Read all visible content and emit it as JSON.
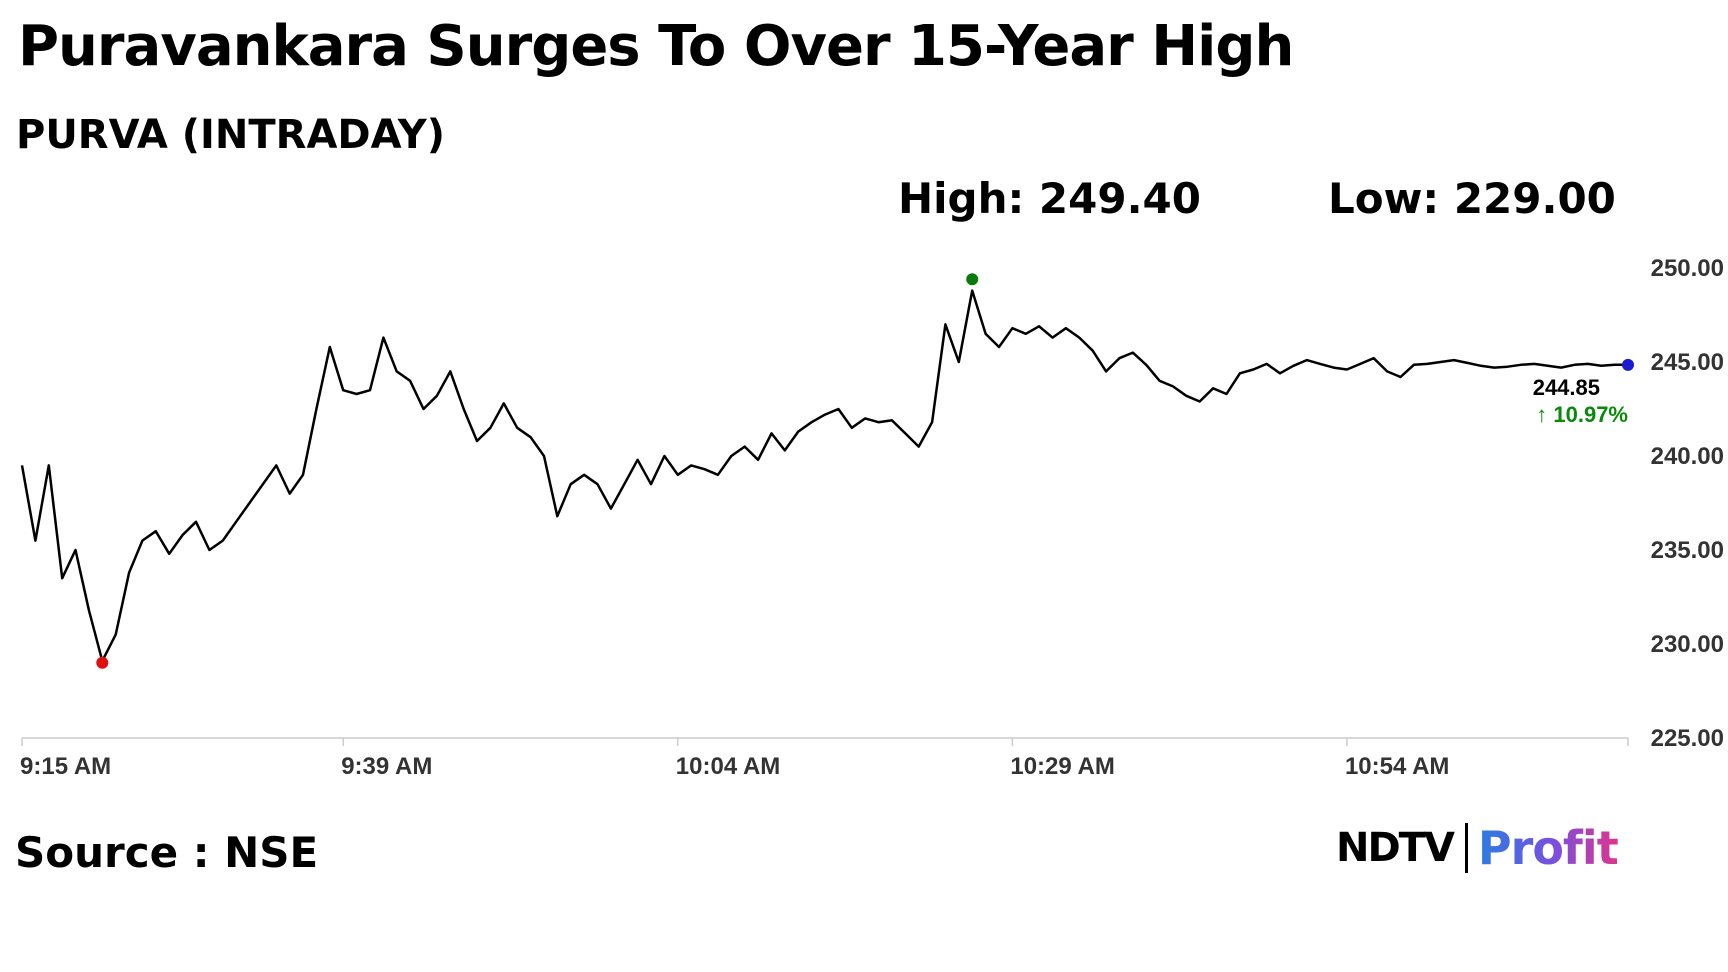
{
  "title": "Puravankara Surges To Over 15-Year High",
  "subtitle": "PURVA (INTRADAY)",
  "stats": {
    "high": "High: 249.40",
    "low": "Low: 229.00"
  },
  "source": "Source : NSE",
  "logo": {
    "ndtv": "NDTV",
    "profit": "Profit"
  },
  "colors": {
    "line": "#000000",
    "high_marker": "#0a7a0a",
    "low_marker": "#e01010",
    "last_marker": "#1a1ad0",
    "change": "#0a8a0a",
    "axis": "#cccccc"
  },
  "chart_data": {
    "type": "line",
    "title": "Puravankara Surges To Over 15-Year High",
    "subtitle": "PURVA (INTRADAY)",
    "xlabel": "",
    "ylabel": "",
    "x_ticks": [
      "9:15 AM",
      "9:39 AM",
      "10:04 AM",
      "10:29 AM",
      "10:54 AM"
    ],
    "y_ticks": [
      "250.00",
      "245.00",
      "240.00",
      "235.00",
      "230.00",
      "225.00"
    ],
    "ylim": [
      225,
      250
    ],
    "grid": false,
    "last_value_label": "244.85",
    "change_label": "↑ 10.97%",
    "series": [
      {
        "x": [
          0,
          1,
          2,
          3,
          4,
          5,
          6,
          7,
          8,
          9,
          10,
          11,
          12,
          13,
          14,
          15,
          16,
          17,
          18,
          19,
          20,
          21,
          22,
          23,
          24,
          25,
          26,
          27,
          28,
          29,
          30,
          31,
          32,
          33,
          34,
          35,
          36,
          37,
          38,
          39,
          40,
          41,
          42,
          43,
          44,
          45,
          46,
          47,
          48,
          49,
          50,
          51,
          52,
          53,
          54,
          55,
          56,
          57,
          58,
          59,
          60,
          61,
          62,
          63,
          64,
          65,
          66,
          67,
          68,
          69,
          70,
          71,
          72,
          73,
          74,
          75,
          76,
          77,
          78,
          79,
          80,
          81,
          82,
          83,
          84,
          85,
          86,
          87,
          88,
          89,
          90,
          91,
          92,
          93,
          94,
          95,
          96,
          97,
          98,
          99,
          100,
          101,
          102,
          103,
          104,
          105,
          106,
          107,
          108,
          109,
          110,
          111,
          112,
          113,
          114,
          115,
          116,
          117,
          118,
          119,
          120
        ],
        "y": [
          239.5,
          235.5,
          239.5,
          233.5,
          235.0,
          231.8,
          229.1,
          230.5,
          233.8,
          235.5,
          236.0,
          234.8,
          235.8,
          236.5,
          235.0,
          235.5,
          236.5,
          237.5,
          238.5,
          239.5,
          238.0,
          239.0,
          242.5,
          245.8,
          243.5,
          243.3,
          243.5,
          246.3,
          244.5,
          244.0,
          242.5,
          243.2,
          244.5,
          242.5,
          240.8,
          241.5,
          242.8,
          241.5,
          241.0,
          240.0,
          236.8,
          238.5,
          239.0,
          238.5,
          237.2,
          238.5,
          239.8,
          238.5,
          240.0,
          239.0,
          239.5,
          239.3,
          239.0,
          240.0,
          240.5,
          239.8,
          241.2,
          240.3,
          241.3,
          241.8,
          242.2,
          242.5,
          241.5,
          242.0,
          241.8,
          241.9,
          241.2,
          240.5,
          241.8,
          247.0,
          245.0,
          248.8,
          246.5,
          245.8,
          246.8,
          246.5,
          246.9,
          246.3,
          246.8,
          246.3,
          245.6,
          244.5,
          245.2,
          245.5,
          244.85,
          244.0,
          243.7,
          243.2,
          242.9,
          243.6,
          243.3,
          244.4,
          244.6,
          244.9,
          244.4,
          244.8,
          245.1,
          244.9,
          244.7,
          244.6,
          244.9,
          245.2,
          244.5,
          244.2,
          244.85,
          244.9,
          245.0,
          245.1,
          244.95,
          244.8,
          244.7,
          244.75,
          244.85,
          244.9,
          244.8,
          244.7,
          244.85,
          244.9,
          244.8,
          244.85,
          244.85
        ],
        "markers": {
          "high": 249.4,
          "low": 229.0,
          "last": 244.85
        }
      }
    ]
  }
}
